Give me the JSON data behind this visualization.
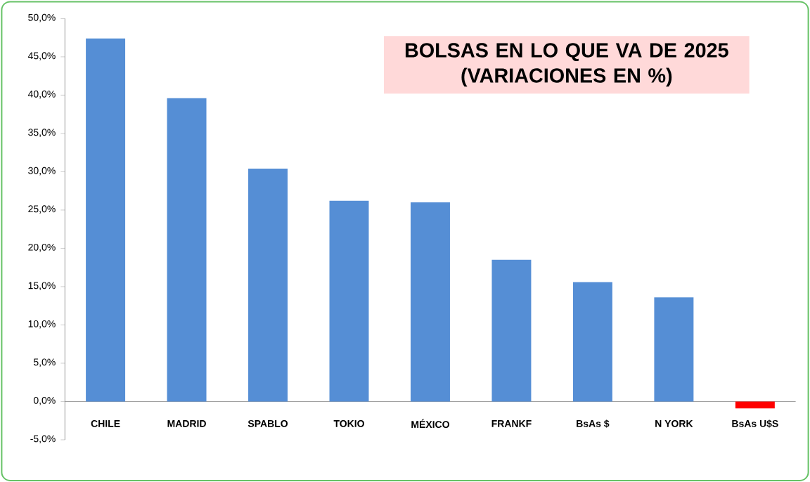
{
  "chart_data": {
    "type": "bar",
    "title": "BOLSAS EN LO QUE VA DE 2025",
    "subtitle": "(VARIACIONES EN %)",
    "categories": [
      "CHILE",
      "MADRID",
      "SPABLO",
      "TOKIO",
      "MÉXICO",
      "FRANKF",
      "BsAs $",
      "N YORK",
      "BsAs U$S"
    ],
    "values": [
      47.4,
      39.6,
      30.4,
      26.2,
      26.0,
      18.5,
      15.6,
      13.6,
      -0.9
    ],
    "colors": [
      "#558ed5",
      "#558ed5",
      "#558ed5",
      "#558ed5",
      "#558ed5",
      "#558ed5",
      "#558ed5",
      "#558ed5",
      "#ff0000"
    ],
    "ylim": [
      -5,
      50
    ],
    "yticks": [
      {
        "value": -5,
        "label": "-5,0%"
      },
      {
        "value": 0,
        "label": "0,0%"
      },
      {
        "value": 5,
        "label": "5,0%"
      },
      {
        "value": 10,
        "label": "10,0%"
      },
      {
        "value": 15,
        "label": "15,0%"
      },
      {
        "value": 20,
        "label": "20,0%"
      },
      {
        "value": 25,
        "label": "25,0%"
      },
      {
        "value": 30,
        "label": "30,0%"
      },
      {
        "value": 35,
        "label": "35,0%"
      },
      {
        "value": 40,
        "label": "40,0%"
      },
      {
        "value": 45,
        "label": "45,0%"
      },
      {
        "value": 50,
        "label": "50,0%"
      }
    ],
    "grid": false
  }
}
